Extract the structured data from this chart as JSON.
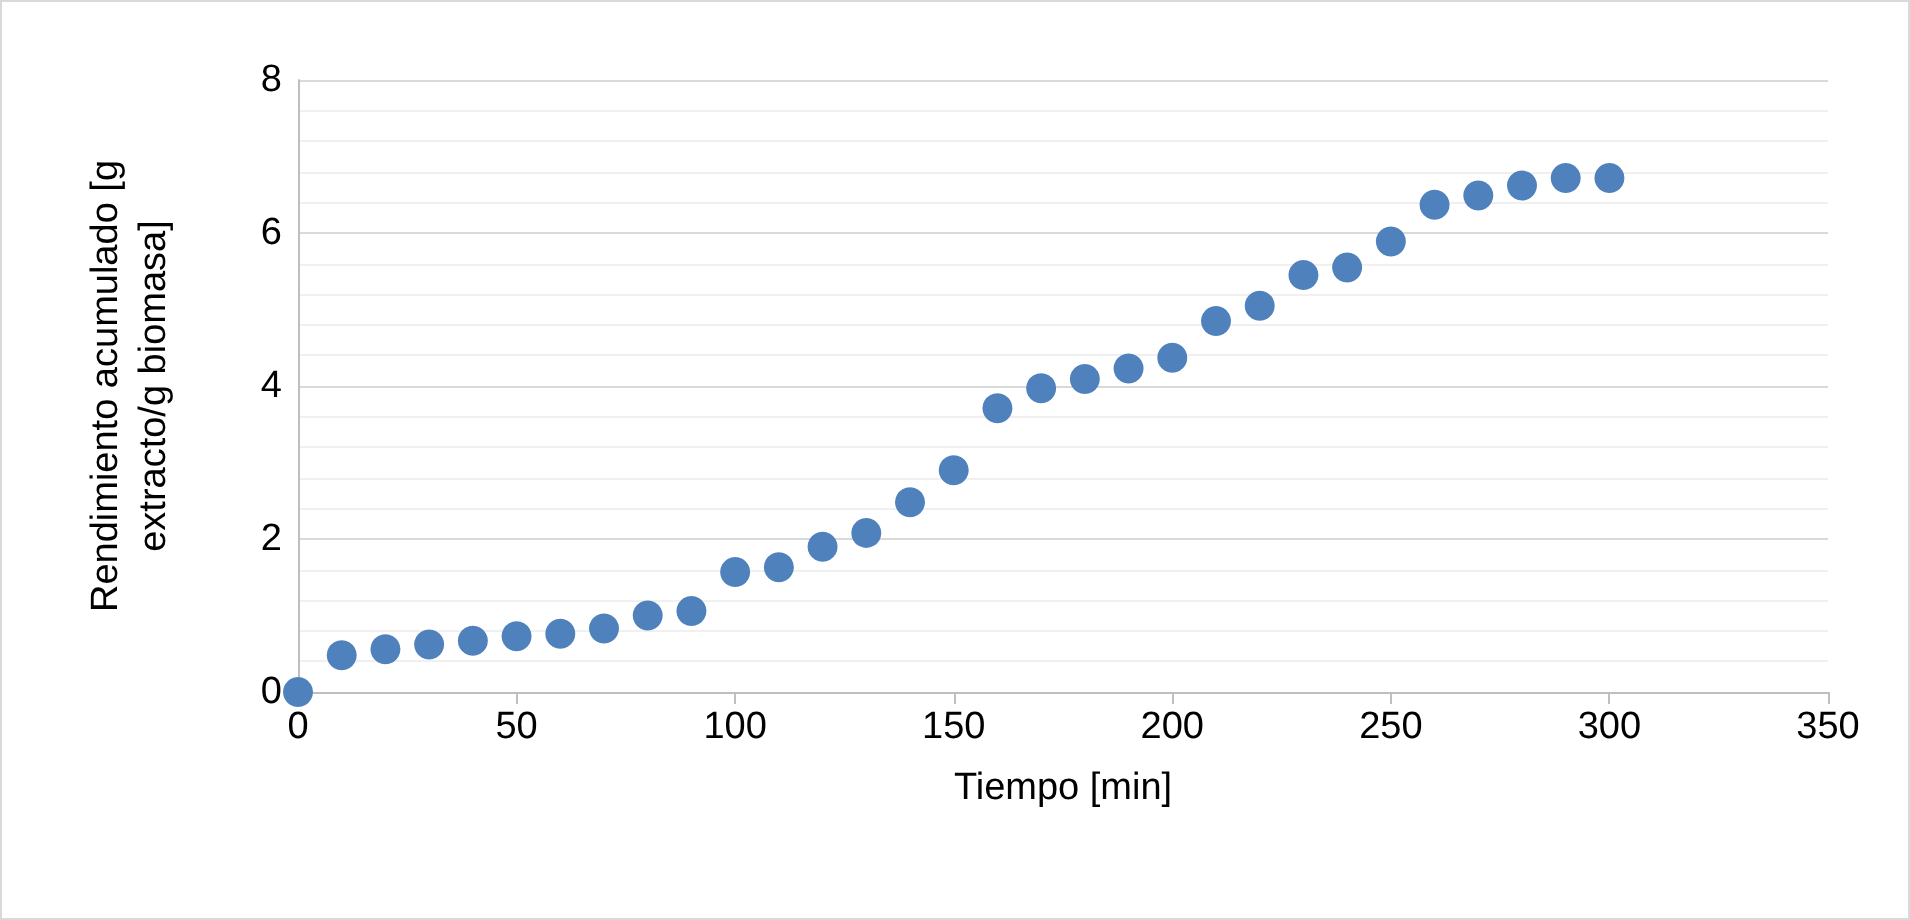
{
  "chart_data": {
    "type": "scatter",
    "xlabel": "Tiempo [min]",
    "ylabel": "Rendimiento acumulado [g extracto/g biomasa]",
    "x": [
      0,
      10,
      20,
      30,
      40,
      50,
      60,
      70,
      80,
      90,
      100,
      110,
      120,
      130,
      140,
      150,
      160,
      170,
      180,
      190,
      200,
      210,
      220,
      230,
      240,
      250,
      260,
      270,
      280,
      290,
      300
    ],
    "series": [
      {
        "color": "#4f81bd",
        "values": [
          0,
          0.48,
          0.56,
          0.62,
          0.67,
          0.73,
          0.76,
          0.83,
          1.0,
          1.06,
          1.57,
          1.63,
          1.9,
          2.08,
          2.48,
          2.9,
          3.71,
          3.97,
          4.09,
          4.23,
          4.37,
          4.85,
          5.05,
          5.45,
          5.55,
          5.89,
          6.37,
          6.49,
          6.62,
          6.72,
          6.72
        ]
      }
    ],
    "xlim": [
      0,
      350
    ],
    "xticks": [
      0,
      50,
      100,
      150,
      200,
      250,
      300,
      350
    ],
    "ylim": [
      0,
      8
    ],
    "yticks": [
      0,
      2,
      4,
      6,
      8
    ],
    "grid": "y",
    "marker": "circle"
  }
}
